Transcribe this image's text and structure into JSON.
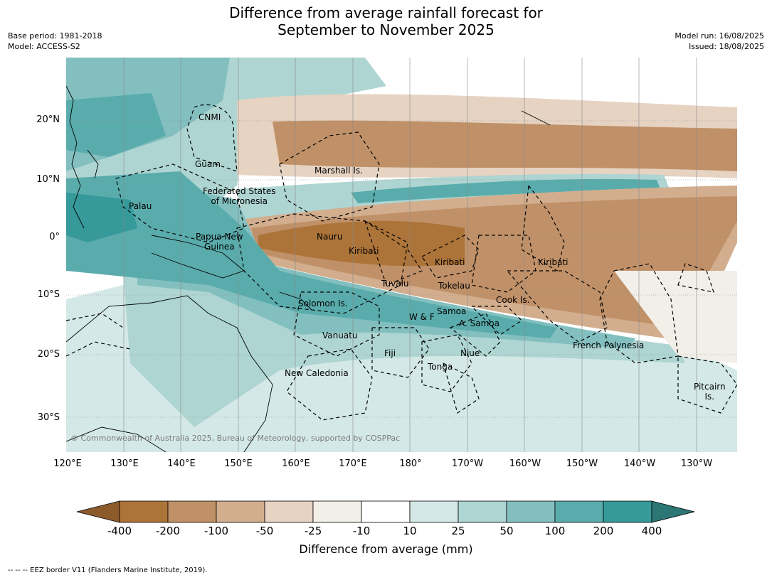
{
  "header": {
    "title_line1": "Difference from average rainfall forecast for",
    "title_line2": "September to November 2025",
    "base_period": "Base period: 1981-2018",
    "model": "Model: ACCESS-S2",
    "model_run": "Model run: 16/08/2025",
    "issued": "Issued: 18/08/2025"
  },
  "map": {
    "lat_labels": [
      "20°N",
      "10°N",
      "0°",
      "10°S",
      "20°S",
      "30°S"
    ],
    "lon_labels": [
      "120°E",
      "130°E",
      "140°E",
      "150°E",
      "160°E",
      "170°E",
      "180°",
      "170°W",
      "160°W",
      "150°W",
      "140°W",
      "130°W"
    ],
    "regions": [
      {
        "id": "cnmi",
        "label": "CNMI"
      },
      {
        "id": "guam",
        "label": "Guam"
      },
      {
        "id": "marshall",
        "label": "Marshall Is."
      },
      {
        "id": "fsm",
        "label": "Federated States\nof Micronesia"
      },
      {
        "id": "palau",
        "label": "Palau"
      },
      {
        "id": "png",
        "label": "Papua New\nGuinea"
      },
      {
        "id": "nauru",
        "label": "Nauru"
      },
      {
        "id": "kiribati1",
        "label": "Kiribati"
      },
      {
        "id": "kiribati2",
        "label": "Kiribati"
      },
      {
        "id": "kiribati3",
        "label": "Kiribati"
      },
      {
        "id": "tuvalu",
        "label": "Tuvalu"
      },
      {
        "id": "tokelau",
        "label": "Tokelau"
      },
      {
        "id": "cook",
        "label": "Cook Is."
      },
      {
        "id": "solomon",
        "label": "Solomon Is."
      },
      {
        "id": "samoa",
        "label": "Samoa"
      },
      {
        "id": "wf",
        "label": "W & F"
      },
      {
        "id": "asamoa",
        "label": "A. Samoa"
      },
      {
        "id": "vanuatu",
        "label": "Vanuatu"
      },
      {
        "id": "fiji",
        "label": "Fiji"
      },
      {
        "id": "niue",
        "label": "Niue"
      },
      {
        "id": "tonga",
        "label": "Tonga"
      },
      {
        "id": "newcal",
        "label": "New Caledonia"
      },
      {
        "id": "frpoly",
        "label": "French Polynesia"
      },
      {
        "id": "pitcairn",
        "label": "Pitcairn\nIs."
      }
    ],
    "copyright": "© Commonwealth of Australia 2025, Bureau of Meteorology, supported by COSPPac"
  },
  "colorbar": {
    "title": "Difference from average (mm)",
    "tick_labels": [
      "-400",
      "-200",
      "-100",
      "-50",
      "-25",
      "-10",
      "10",
      "25",
      "50",
      "100",
      "200",
      "400"
    ],
    "colors": [
      "#8c5a2b",
      "#ad7439",
      "#c09168",
      "#d2ae8e",
      "#e6d3c2",
      "#f2eee8",
      "#ffffff",
      "#d4e9e7",
      "#aed5d2",
      "#83bfbf",
      "#5aacac",
      "#36999a",
      "#2c7676"
    ]
  },
  "footnote": "--  --  -- EEZ border V11 (Flanders Marine Institute, 2019)."
}
